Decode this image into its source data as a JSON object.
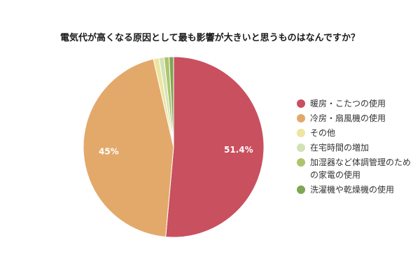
{
  "chart_data": {
    "type": "pie",
    "title": "電気代が高くなる原因として最も影響が大きいと思うものはなんですか？",
    "categories": [
      "暖房・こたつの使用",
      "冷房・扇風機の使用",
      "その他",
      "在宅時間の増加",
      "加湿器など体調管理のための家電の使用",
      "洗濯機や乾燥機の使用"
    ],
    "values": [
      51.4,
      45,
      1.0,
      0.9,
      0.9,
      0.8
    ],
    "colors": [
      "#c9505f",
      "#e3a96a",
      "#ede5a0",
      "#d3e2b4",
      "#aec46c",
      "#7fa653"
    ],
    "data_labels": [
      "51.4%",
      "45%",
      "",
      "",
      "",
      ""
    ],
    "start_angle_deg": 0,
    "direction": "clockwise",
    "legend_position": "right",
    "xlabel": "",
    "ylabel": ""
  },
  "title": "電気代が高くなる原因として最も影響が大きいと思うものはなんですか？",
  "legend": {
    "items": [
      {
        "label": "暖房・こたつの使用",
        "color": "#c9505f"
      },
      {
        "label": "冷房・扇風機の使用",
        "color": "#e3a96a"
      },
      {
        "label": "その他",
        "color": "#ede5a0"
      },
      {
        "label": "在宅時間の増加",
        "color": "#d3e2b4"
      },
      {
        "label": "加湿器など体調管理のため\nの家電の使用",
        "color": "#aec46c"
      },
      {
        "label": "洗濯機や乾燥機の使用",
        "color": "#7fa653"
      }
    ]
  }
}
